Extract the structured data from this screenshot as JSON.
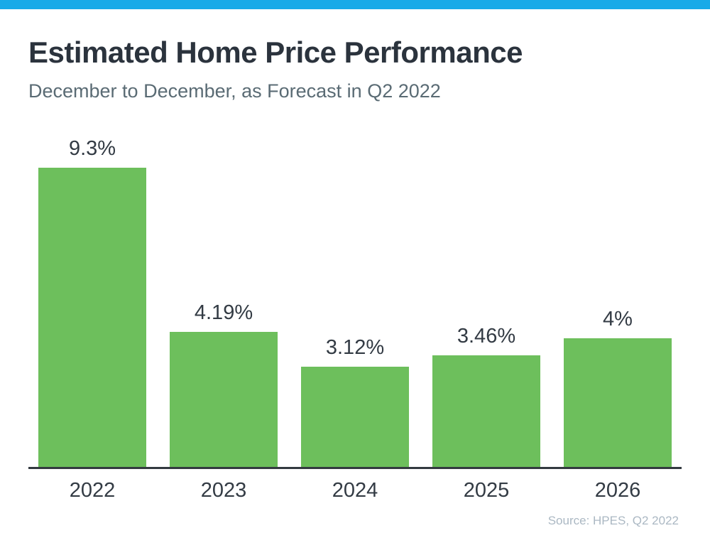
{
  "page": {
    "title": "Estimated Home Price Performance",
    "subtitle": "December to December, as Forecast in Q2 2022",
    "source": "Source: HPES, Q2 2022",
    "accent_bar_color": "#18aae8"
  },
  "chart_data": {
    "type": "bar",
    "categories": [
      "2022",
      "2023",
      "2024",
      "2025",
      "2026"
    ],
    "values": [
      9.3,
      4.19,
      3.12,
      3.46,
      4
    ],
    "value_labels": [
      "9.3%",
      "4.19%",
      "3.12%",
      "3.46%",
      "4%"
    ],
    "title": "Estimated Home Price Performance",
    "subtitle": "December to December, as Forecast in Q2 2022",
    "xlabel": "",
    "ylabel": "",
    "ylim": [
      0,
      9.3
    ],
    "grid": false,
    "legend": false,
    "bar_color": "#6dbf5c",
    "axis_line_color": "#333a40",
    "annotations": "percentage value labels above each bar",
    "source_note": "Source: HPES, Q2 2022"
  }
}
